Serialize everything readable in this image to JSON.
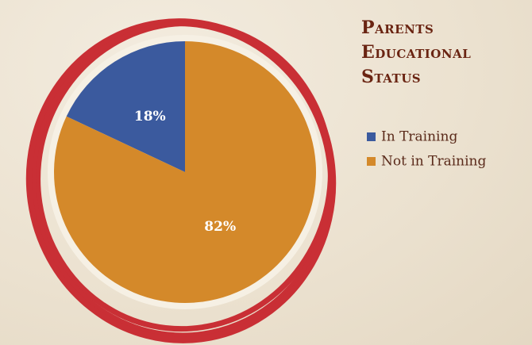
{
  "chart_data": {
    "type": "pie",
    "title": "Parents Educational Status",
    "categories": [
      "In Training",
      "Not in Training"
    ],
    "values": [
      18,
      82
    ],
    "value_labels": [
      "18%",
      "82%"
    ],
    "colors": [
      "#3b5a9e",
      "#d4892a"
    ],
    "legend": "right"
  }
}
